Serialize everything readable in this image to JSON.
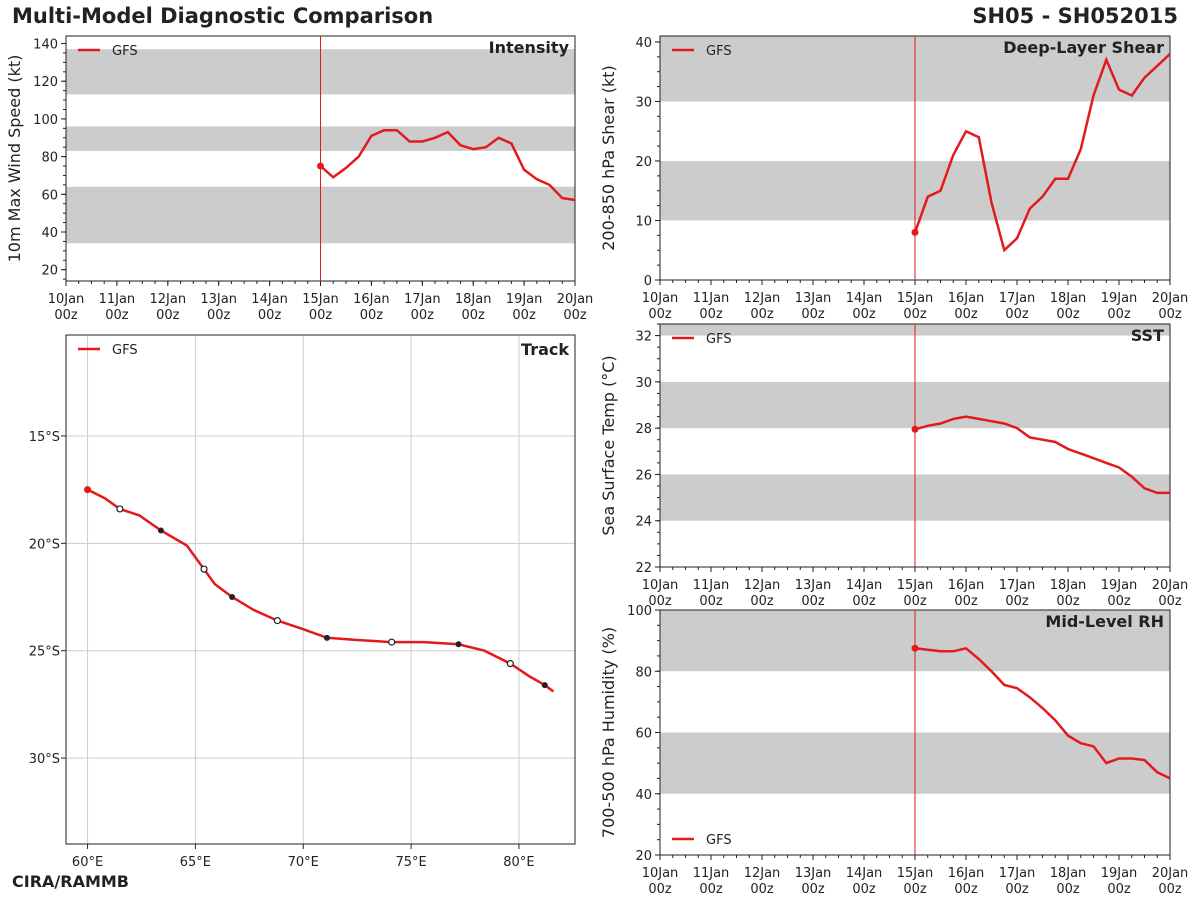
{
  "header": {
    "title": "Multi-Model Diagnostic Comparison",
    "storm": "SH05 - SH052015"
  },
  "footer": {
    "credit": "CIRA/RAMMB"
  },
  "colors": {
    "series": "#e31a1c",
    "band": "#cccccc",
    "grid": "#cccccc",
    "axis": "#222222"
  },
  "chart_data": [
    {
      "id": "intensity",
      "type": "line",
      "title": "Intensity",
      "ylabel": "10m Max Wind Speed (kt)",
      "xlabel": "",
      "ylim": [
        14,
        144
      ],
      "yticks": [
        20,
        40,
        60,
        80,
        100,
        120,
        140
      ],
      "bands": [
        [
          34,
          64
        ],
        [
          83,
          96
        ],
        [
          113,
          137
        ]
      ],
      "x_days": 10,
      "x_tick_top": [
        "10Jan",
        "11Jan",
        "12Jan",
        "13Jan",
        "14Jan",
        "15Jan",
        "16Jan",
        "17Jan",
        "18Jan",
        "19Jan",
        "20Jan"
      ],
      "x_tick_bottom": "00z",
      "vline_day": 15,
      "legend": "top-left",
      "series": [
        {
          "name": "GFS",
          "x": [
            15,
            15.25,
            15.5,
            15.75,
            16,
            16.25,
            16.5,
            16.75,
            17,
            17.25,
            17.5,
            17.75,
            18,
            18.25,
            18.5,
            18.75,
            19,
            19.25,
            19.5,
            19.75,
            20
          ],
          "values": [
            75,
            69,
            74,
            80,
            91,
            94,
            94,
            88,
            88,
            90,
            93,
            86,
            84,
            85,
            90,
            87,
            73,
            68,
            65,
            58,
            57
          ]
        }
      ]
    },
    {
      "id": "shear",
      "type": "line",
      "title": "Deep-Layer Shear",
      "ylabel": "200-850 hPa Shear (kt)",
      "xlabel": "",
      "ylim": [
        0,
        41
      ],
      "yticks": [
        0,
        10,
        20,
        30,
        40
      ],
      "bands": [
        [
          10,
          20
        ],
        [
          30,
          41
        ]
      ],
      "x_days": 10,
      "x_tick_top": [
        "10Jan",
        "11Jan",
        "12Jan",
        "13Jan",
        "14Jan",
        "15Jan",
        "16Jan",
        "17Jan",
        "18Jan",
        "19Jan",
        "20Jan"
      ],
      "x_tick_bottom": "00z",
      "vline_day": 15,
      "legend": "top-left",
      "series": [
        {
          "name": "GFS",
          "x": [
            15,
            15.25,
            15.5,
            15.75,
            16,
            16.25,
            16.5,
            16.75,
            17,
            17.25,
            17.5,
            17.75,
            18,
            18.25,
            18.5,
            18.75,
            19,
            19.25,
            19.5,
            19.75,
            20
          ],
          "values": [
            8,
            14,
            15,
            21,
            25,
            24,
            13,
            5,
            7,
            12,
            14,
            17,
            17,
            22,
            31,
            37,
            32,
            31,
            34,
            36,
            38
          ]
        }
      ]
    },
    {
      "id": "sst",
      "type": "line",
      "title": "SST",
      "ylabel": "Sea Surface Temp (°C)",
      "xlabel": "",
      "ylim": [
        22,
        32.5
      ],
      "yticks": [
        22,
        24,
        26,
        28,
        30,
        32
      ],
      "bands": [
        [
          24,
          26
        ],
        [
          28,
          30
        ],
        [
          32,
          32.5
        ]
      ],
      "x_days": 10,
      "x_tick_top": [
        "10Jan",
        "11Jan",
        "12Jan",
        "13Jan",
        "14Jan",
        "15Jan",
        "16Jan",
        "17Jan",
        "18Jan",
        "19Jan",
        "20Jan"
      ],
      "x_tick_bottom": "00z",
      "vline_day": 15,
      "legend": "top-left",
      "series": [
        {
          "name": "GFS",
          "x": [
            15,
            15.25,
            15.5,
            15.75,
            16,
            16.25,
            16.5,
            16.75,
            17,
            17.25,
            17.5,
            17.75,
            18,
            18.25,
            18.5,
            18.75,
            19,
            19.25,
            19.5,
            19.75,
            20
          ],
          "values": [
            27.95,
            28.1,
            28.2,
            28.4,
            28.5,
            28.4,
            28.3,
            28.2,
            28.0,
            27.6,
            27.5,
            27.4,
            27.1,
            26.9,
            26.7,
            26.5,
            26.3,
            25.9,
            25.4,
            25.2,
            25.2
          ]
        }
      ]
    },
    {
      "id": "rh",
      "type": "line",
      "title": "Mid-Level RH",
      "ylabel": "700-500 hPa Humidity (%)",
      "xlabel": "",
      "ylim": [
        20,
        100
      ],
      "yticks": [
        20,
        40,
        60,
        80,
        100
      ],
      "bands": [
        [
          40,
          60
        ],
        [
          80,
          100
        ]
      ],
      "x_days": 10,
      "x_tick_top": [
        "10Jan",
        "11Jan",
        "12Jan",
        "13Jan",
        "14Jan",
        "15Jan",
        "16Jan",
        "17Jan",
        "18Jan",
        "19Jan",
        "20Jan"
      ],
      "x_tick_bottom": "00z",
      "vline_day": 15,
      "legend": "bottom-left",
      "series": [
        {
          "name": "GFS",
          "x": [
            15,
            15.25,
            15.5,
            15.75,
            16,
            16.25,
            16.5,
            16.75,
            17,
            17.25,
            17.5,
            17.75,
            18,
            18.25,
            18.5,
            18.75,
            19,
            19.25,
            19.5,
            19.75,
            20
          ],
          "values": [
            87.5,
            87,
            86.5,
            86.5,
            87.5,
            84,
            80,
            75.5,
            74.5,
            71.5,
            68,
            64,
            59,
            56.5,
            55.5,
            50,
            51.5,
            51.5,
            51,
            47,
            45
          ]
        }
      ]
    },
    {
      "id": "track",
      "type": "line",
      "title": "Track",
      "xlabel": "",
      "ylabel": "",
      "xlim": [
        59,
        82.6
      ],
      "ylim": [
        -34,
        -10.3
      ],
      "xticks": [
        60,
        65,
        70,
        75,
        80
      ],
      "xtick_labels": [
        "60°E",
        "65°E",
        "70°E",
        "75°E",
        "80°E"
      ],
      "yticks": [
        -15,
        -20,
        -25,
        -30
      ],
      "ytick_labels": [
        "15°S",
        "20°S",
        "25°S",
        "30°S"
      ],
      "grid": true,
      "legend": "top-left",
      "series": [
        {
          "name": "GFS",
          "lon": [
            60.0,
            60.8,
            61.5,
            62.4,
            63.4,
            64.6,
            65.4,
            65.9,
            66.7,
            67.7,
            68.8,
            70.0,
            71.1,
            72.5,
            74.1,
            75.6,
            77.2,
            78.4,
            79.6,
            80.5,
            81.2,
            81.6
          ],
          "lat": [
            -17.5,
            -17.9,
            -18.4,
            -18.7,
            -19.4,
            -20.1,
            -21.2,
            -21.9,
            -22.5,
            -23.1,
            -23.6,
            -24.0,
            -24.4,
            -24.5,
            -24.6,
            -24.6,
            -24.7,
            -25.0,
            -25.6,
            -26.2,
            -26.6,
            -26.9
          ],
          "markers": [
            {
              "index": 0,
              "style": "start"
            },
            {
              "index": 2,
              "style": "open"
            },
            {
              "index": 4,
              "style": "filled"
            },
            {
              "index": 6,
              "style": "open"
            },
            {
              "index": 8,
              "style": "filled"
            },
            {
              "index": 10,
              "style": "open"
            },
            {
              "index": 12,
              "style": "filled"
            },
            {
              "index": 14,
              "style": "open"
            },
            {
              "index": 16,
              "style": "filled"
            },
            {
              "index": 18,
              "style": "open"
            },
            {
              "index": 20,
              "style": "filled"
            }
          ]
        }
      ]
    }
  ]
}
